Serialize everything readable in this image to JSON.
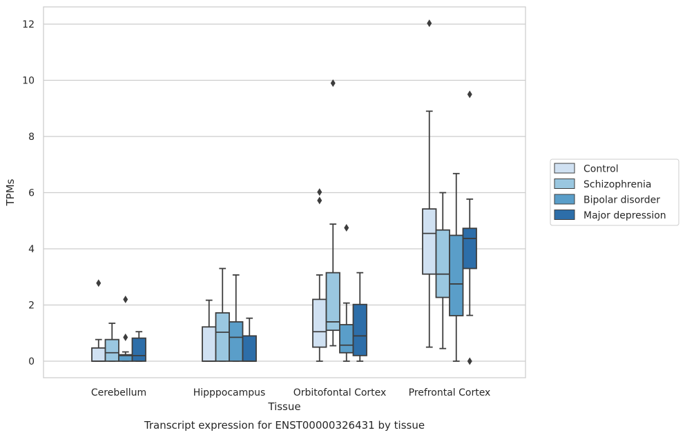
{
  "chart_data": {
    "type": "boxplot",
    "title": "",
    "caption": "Transcript expression for ENST00000326431 by tissue",
    "xlabel": "Tissue",
    "ylabel": "TPMs",
    "ylim": [
      -0.55,
      12.65
    ],
    "yticks": [
      0,
      2,
      4,
      6,
      8,
      10,
      12
    ],
    "grid": "horizontal",
    "legend_position": "right",
    "categories": [
      "Cerebellum",
      "Hipppocampus",
      "Orbitofontal Cortex",
      "Prefrontal Cortex"
    ],
    "series": [
      {
        "name": "Control",
        "color": "#d0e1f2",
        "boxes": [
          {
            "whislo": 0.0,
            "q1": 0.0,
            "med": 0.0,
            "q3": 0.47,
            "whishi": 0.77,
            "fliers": [
              2.78
            ]
          },
          {
            "whislo": 0.0,
            "q1": 0.0,
            "med": 0.0,
            "q3": 1.22,
            "whishi": 2.17,
            "fliers": []
          },
          {
            "whislo": 0.0,
            "q1": 0.5,
            "med": 1.05,
            "q3": 2.2,
            "whishi": 3.07,
            "fliers": [
              5.72,
              6.02
            ]
          },
          {
            "whislo": 0.5,
            "q1": 3.1,
            "med": 4.55,
            "q3": 5.42,
            "whishi": 8.9,
            "fliers": [
              12.03
            ]
          }
        ]
      },
      {
        "name": "Schizophrenia",
        "color": "#9ac7e0",
        "boxes": [
          {
            "whislo": 0.0,
            "q1": 0.0,
            "med": 0.3,
            "q3": 0.77,
            "whishi": 1.35,
            "fliers": []
          },
          {
            "whislo": 0.0,
            "q1": 0.0,
            "med": 1.03,
            "q3": 1.72,
            "whishi": 3.3,
            "fliers": []
          },
          {
            "whislo": 0.55,
            "q1": 1.1,
            "med": 1.4,
            "q3": 3.15,
            "whishi": 4.88,
            "fliers": [
              9.9
            ]
          },
          {
            "whislo": 0.45,
            "q1": 2.27,
            "med": 3.1,
            "q3": 4.67,
            "whishi": 6.0,
            "fliers": []
          }
        ]
      },
      {
        "name": "Bipolar disorder",
        "color": "#5a9ec9",
        "boxes": [
          {
            "whislo": 0.0,
            "q1": 0.0,
            "med": 0.2,
            "q3": 0.23,
            "whishi": 0.33,
            "fliers": [
              0.85,
              2.2
            ]
          },
          {
            "whislo": 0.0,
            "q1": 0.0,
            "med": 0.85,
            "q3": 1.4,
            "whishi": 3.07,
            "fliers": []
          },
          {
            "whislo": 0.0,
            "q1": 0.3,
            "med": 0.57,
            "q3": 1.3,
            "whishi": 2.07,
            "fliers": [
              4.75
            ]
          },
          {
            "whislo": 0.0,
            "q1": 1.62,
            "med": 2.75,
            "q3": 4.48,
            "whishi": 6.68,
            "fliers": []
          }
        ]
      },
      {
        "name": "Major depression",
        "color": "#2d6ea9",
        "boxes": [
          {
            "whislo": 0.0,
            "q1": 0.0,
            "med": 0.2,
            "q3": 0.82,
            "whishi": 1.05,
            "fliers": []
          },
          {
            "whislo": 0.0,
            "q1": 0.0,
            "med": 0.0,
            "q3": 0.9,
            "whishi": 1.53,
            "fliers": []
          },
          {
            "whislo": 0.0,
            "q1": 0.2,
            "med": 0.9,
            "q3": 2.02,
            "whishi": 3.15,
            "fliers": []
          },
          {
            "whislo": 1.63,
            "q1": 3.3,
            "med": 4.37,
            "q3": 4.73,
            "whishi": 5.77,
            "fliers": [
              0.0,
              9.5
            ]
          }
        ]
      }
    ]
  }
}
